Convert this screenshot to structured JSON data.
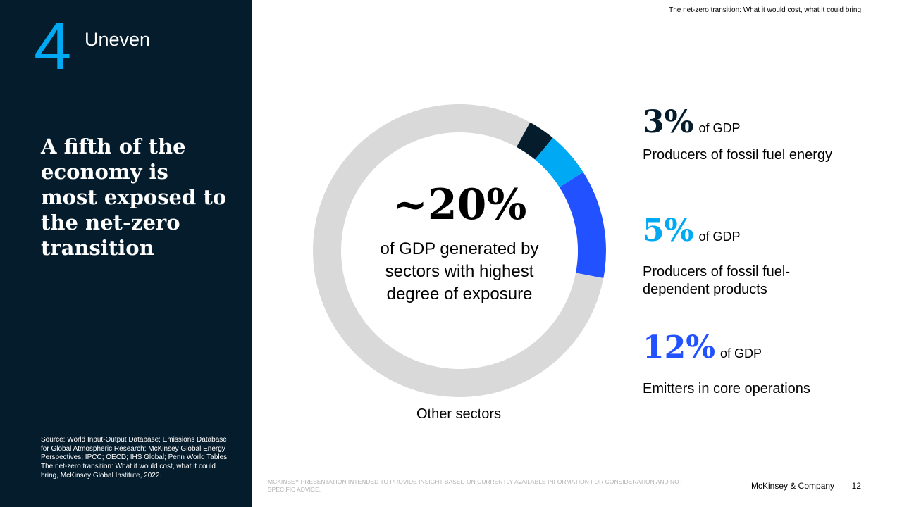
{
  "colors": {
    "panel_bg": "#051c2c",
    "accent_cyan": "#00a9f4",
    "fossil_energy": "#051c2c",
    "fossil_products": "#00a9f4",
    "emitters": "#2251ff",
    "other_sectors": "#d9d9d9"
  },
  "sidebar": {
    "section_number": "4",
    "section_label": "Uneven",
    "headline": "A fifth of the economy is most exposed to the net-zero transition",
    "source": "Source: World Input-Output Database; Emissions Database for Global Atmospheric Research; McKinsey Global Energy Perspectives; IPCC; OECD; IHS Global; Penn World Tables; The net-zero transition: What it would cost, what it could bring, McKinsey Global Institute, 2022."
  },
  "header": {
    "doc_title": "The net-zero transition: What it would cost, what it could bring"
  },
  "center": {
    "value": "~20%",
    "description": "of GDP generated by sectors with highest degree of exposure"
  },
  "chart_data": {
    "type": "pie",
    "style": "donut",
    "unit": "% of GDP",
    "slices": [
      {
        "label": "Producers of fossil fuel energy",
        "value": 3,
        "color": "#051c2c"
      },
      {
        "label": "Producers of fossil fuel-dependent products",
        "value": 5,
        "color": "#00a9f4"
      },
      {
        "label": "Emitters in core operations",
        "value": 12,
        "color": "#2251ff"
      },
      {
        "label": "Other sectors",
        "value": 80,
        "color": "#d9d9d9"
      }
    ]
  },
  "labels": {
    "other_sectors": "Other sectors"
  },
  "stats": [
    {
      "value": "3%",
      "unit": "of GDP",
      "description": "Producers of fossil fuel energy",
      "color": "#051c2c"
    },
    {
      "value": "5%",
      "unit": "of GDP",
      "description": "Producers of fossil fuel-dependent products",
      "color": "#00a9f4"
    },
    {
      "value": "12%",
      "unit": "of GDP",
      "description": "Emitters in core operations",
      "color": "#2251ff"
    }
  ],
  "footer": {
    "disclaimer": "MCKINSEY PRESENTATION INTENDED TO PROVIDE INSIGHT BASED ON CURRENTLY AVAILABLE INFORMATION FOR CONSIDERATION AND NOT SPECIFIC ADVICE.",
    "brand": "McKinsey & Company",
    "page_number": "12"
  }
}
